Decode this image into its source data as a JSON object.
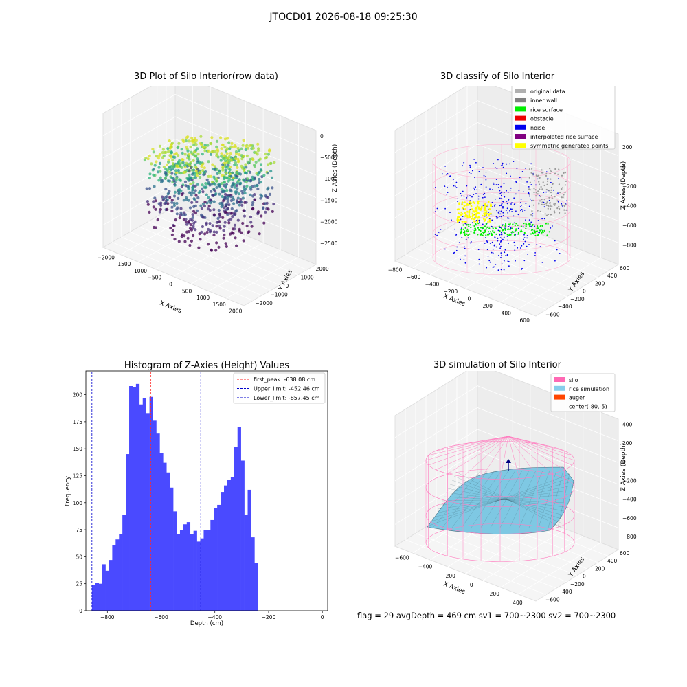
{
  "suptitle": "JTOCD01 2026-08-18 09:25:30",
  "footer": "flag = 29  avgDepth = 469 cm  sv1 = 700~2300  sv2 = 700~2300",
  "colors": {
    "bar": "#4a4aff",
    "first_peak": "#ff2a2a",
    "limits": "#0000cc",
    "silo_wire": "#ff7fc0",
    "rice_surface": "#7ec8e3"
  },
  "plot_raw": {
    "title": "3D Plot of Silo Interior(row data)",
    "xlabel": "X Axies",
    "ylabel": "Y Axies",
    "zlabel": "Z Axies (Depth)",
    "xticks": [
      "−2000",
      "−1500",
      "−1000",
      "−500",
      "0",
      "500",
      "1000",
      "1500",
      "2000"
    ],
    "yticks": [
      "2000",
      "1000",
      "0",
      "−1000",
      "−2000"
    ],
    "zticks": [
      "0",
      "−500",
      "−1000",
      "−1500",
      "−2000",
      "−2500"
    ]
  },
  "plot_classify": {
    "title": "3D classify of Silo Interior",
    "xlabel": "X Axies",
    "ylabel": "Y Axies",
    "zlabel": "Z Axies (Depth)",
    "xticks": [
      "−800",
      "−600",
      "−400",
      "−200",
      "0",
      "200",
      "400",
      "600"
    ],
    "yticks": [
      "600",
      "400",
      "200",
      "0",
      "−200",
      "−400",
      "−600"
    ],
    "zticks": [
      "200",
      "0",
      "−200",
      "−400",
      "−600",
      "−800"
    ],
    "legend": [
      {
        "label": "original data",
        "color": "#b0b0b0"
      },
      {
        "label": "inner wall",
        "color": "#808080"
      },
      {
        "label": "rice surface",
        "color": "#00ee00"
      },
      {
        "label": "obstacle",
        "color": "#ee0000"
      },
      {
        "label": "noise",
        "color": "#0000ee"
      },
      {
        "label": "interpolated rice surface",
        "color": "#800080"
      },
      {
        "label": "symmetric generated points",
        "color": "#ffff00"
      }
    ]
  },
  "plot_sim": {
    "title": "3D simulation of Silo Interior",
    "xlabel": "X Axies",
    "ylabel": "Y Axies",
    "zlabel": "Z Axies (Depth)",
    "xticks": [
      "−600",
      "−400",
      "−200",
      "0",
      "200",
      "400"
    ],
    "yticks": [
      "600",
      "400",
      "200",
      "0",
      "−200",
      "−400",
      "−600"
    ],
    "zticks": [
      "400",
      "200",
      "0",
      "−200",
      "−400",
      "−600",
      "−800"
    ],
    "legend": [
      {
        "label": "silo",
        "color": "#ff69b4"
      },
      {
        "label": "rice simulation",
        "color": "#87ceeb"
      },
      {
        "label": "auger",
        "color": "#ff4500"
      },
      {
        "label": "center(-80,-5)",
        "color": "none"
      }
    ]
  },
  "chart_data": {
    "type": "bar",
    "title": "Histogram of Z-Axies (Height) Values",
    "xlabel": "Depth (cm)",
    "ylabel": "Frequency",
    "xlim": [
      -880,
      20
    ],
    "ylim": [
      0,
      222
    ],
    "xticks": [
      -800,
      -600,
      -400,
      -200,
      0
    ],
    "yticks": [
      0,
      25,
      50,
      75,
      100,
      125,
      150,
      175,
      200
    ],
    "bin_start": -857.45,
    "bin_width": 12.6,
    "values": [
      24,
      26,
      25,
      43,
      37,
      47,
      61,
      66,
      71,
      89,
      145,
      208,
      207,
      210,
      191,
      197,
      183,
      198,
      176,
      164,
      146,
      137,
      128,
      114,
      92,
      71,
      75,
      80,
      82,
      71,
      74,
      64,
      67,
      75,
      75,
      84,
      95,
      98,
      110,
      116,
      121,
      124,
      152,
      170,
      139,
      89,
      112,
      68,
      44
    ],
    "lines": [
      {
        "label": "first_peak: -638.08 cm",
        "x": -638.08,
        "color": "#ff2a2a"
      },
      {
        "label": "Upper_limit: -452.46 cm",
        "x": -452.46,
        "color": "#0000cc"
      },
      {
        "label": "Lower_limit: -857.45 cm",
        "x": -857.45,
        "color": "#0000cc"
      }
    ],
    "legend_position": "top-right"
  }
}
